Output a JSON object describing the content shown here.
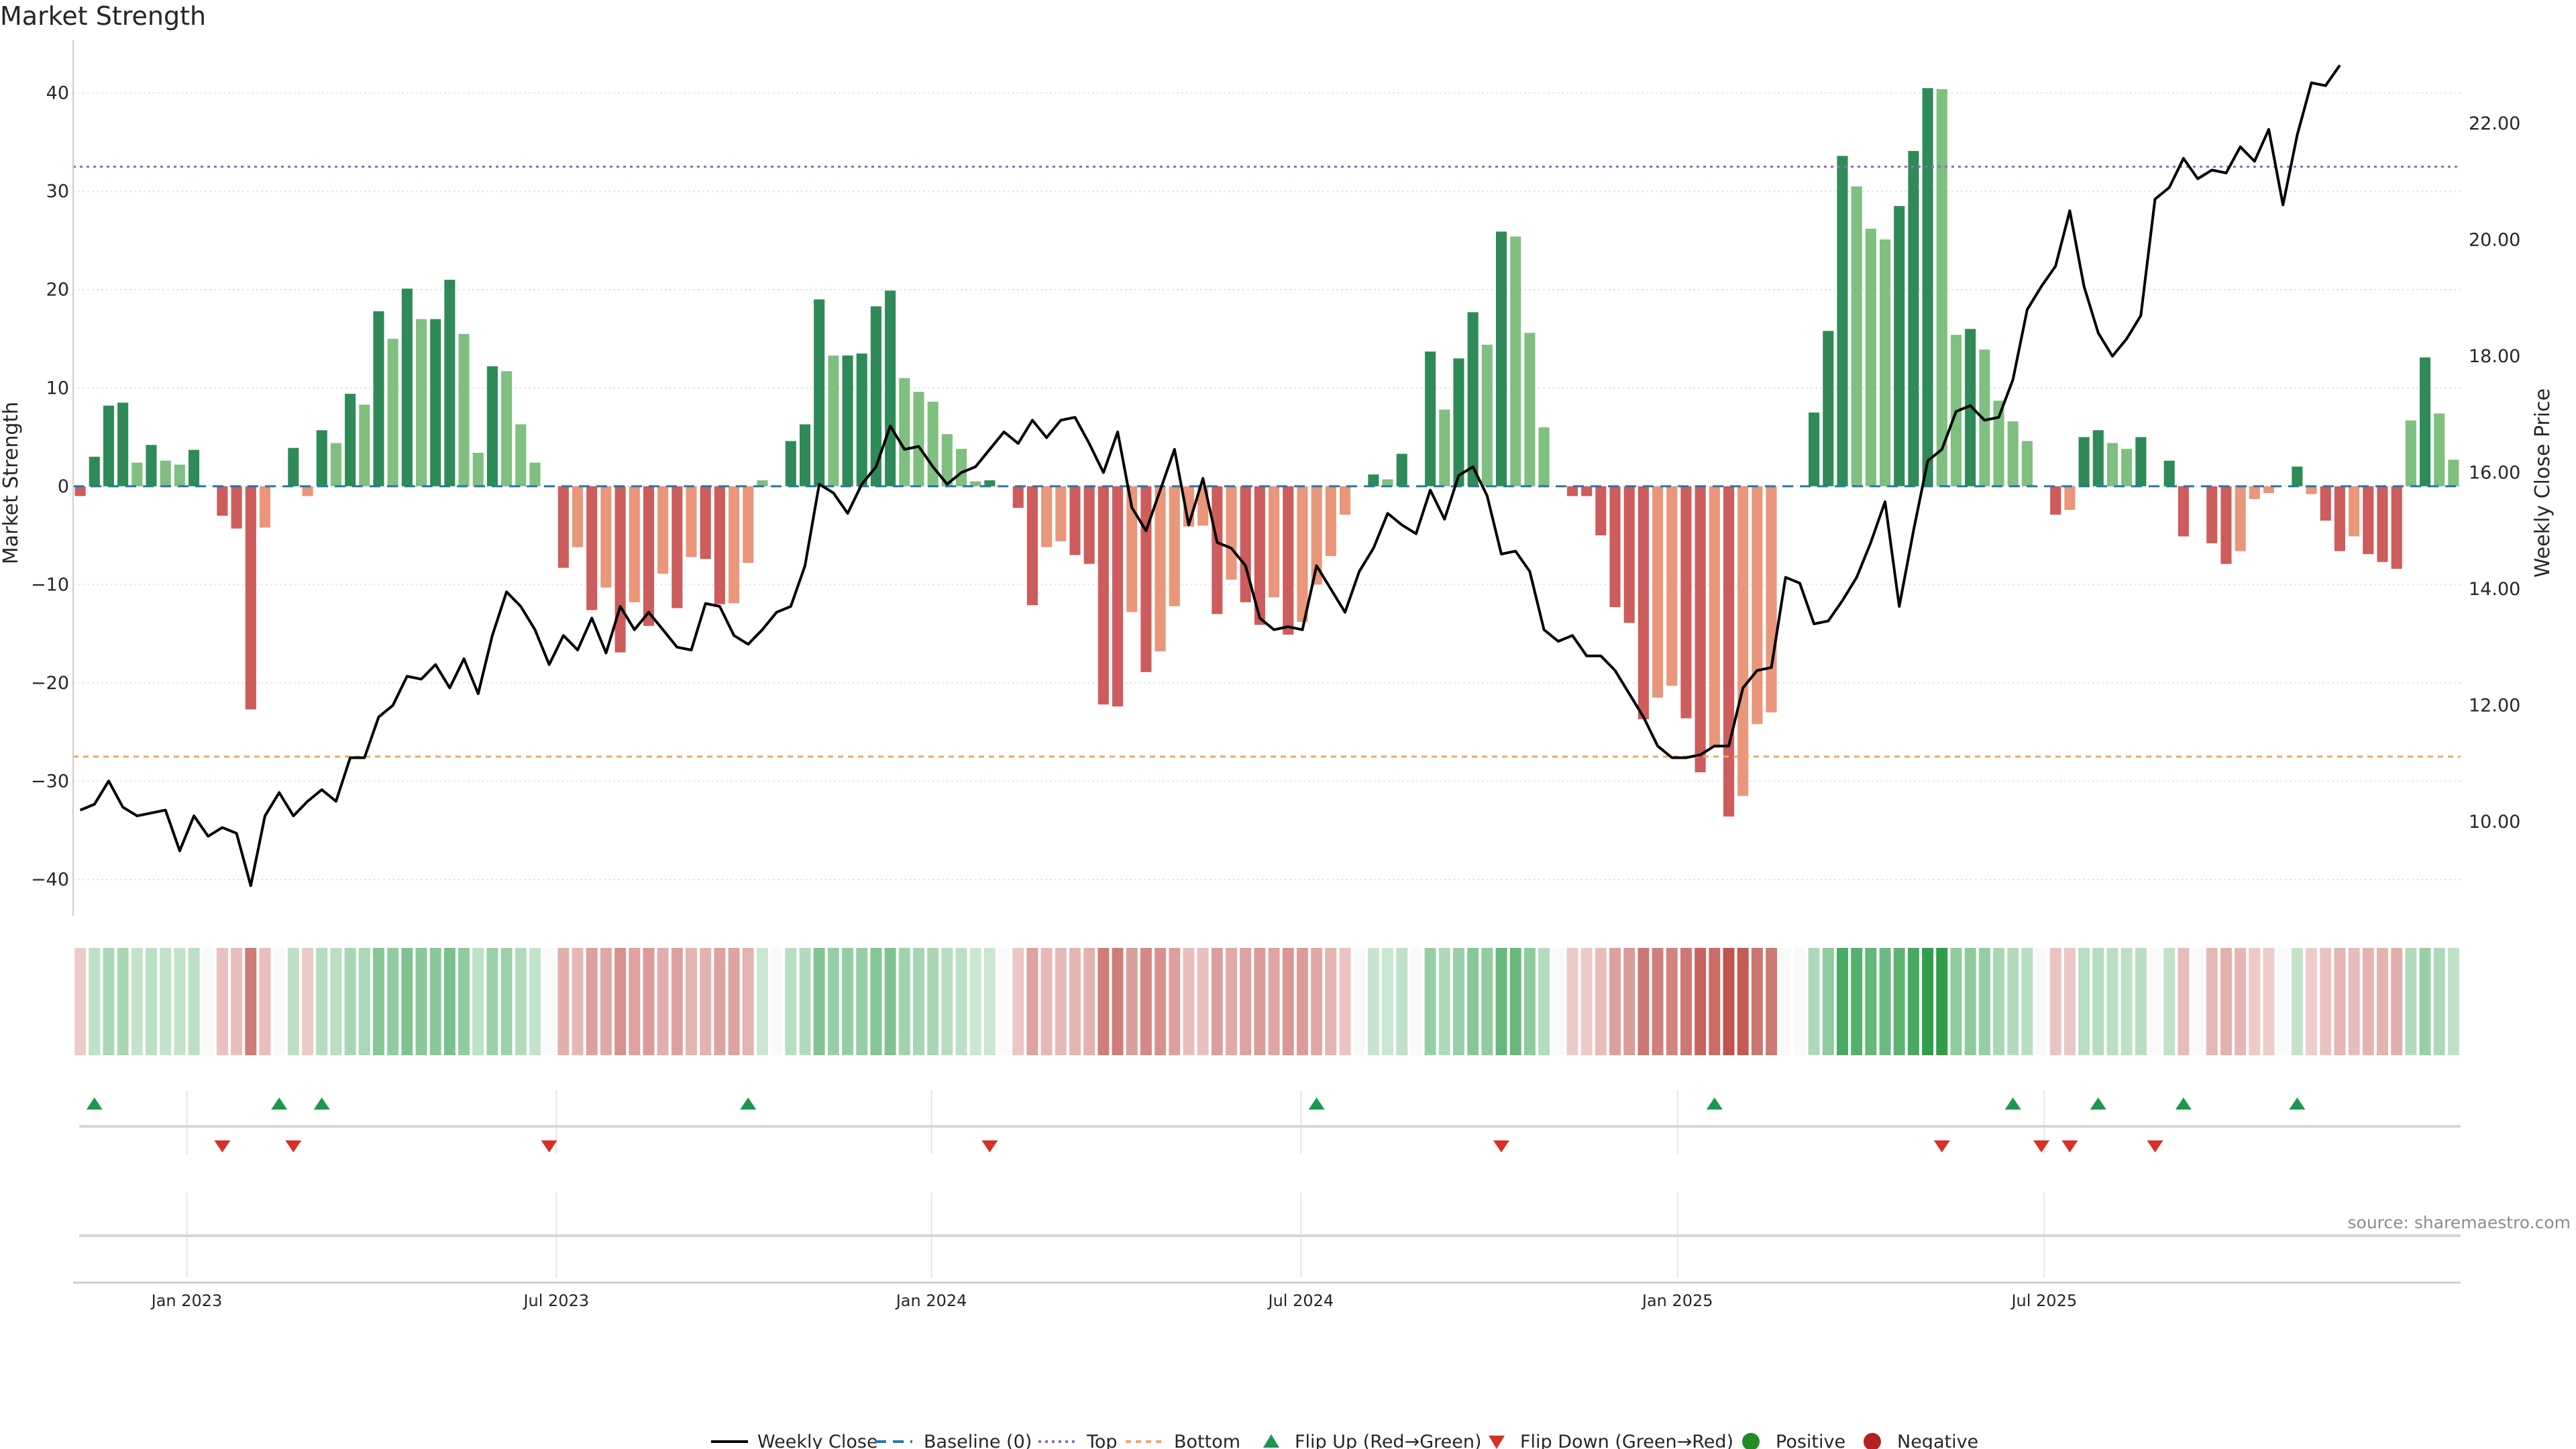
{
  "chart_data": {
    "type": "bar+line",
    "title": "Market Strength",
    "source": "source: sharemaestro.com",
    "y_left_label": "Market Strength",
    "y_right_label": "Weekly Close Price",
    "y_left_range": [
      -43,
      44
    ],
    "y_right_range": [
      8.5,
      23.2
    ],
    "y_left_ticks": [
      "40",
      "30",
      "20",
      "10",
      "0",
      "−10",
      "−20",
      "−30",
      "−40"
    ],
    "y_left_tick_values": [
      40,
      30,
      20,
      10,
      0,
      -10,
      -20,
      -30,
      -40
    ],
    "y_right_ticks": [
      "22.00",
      "20.00",
      "18.00",
      "16.00",
      "14.00",
      "12.00",
      "10.00"
    ],
    "y_right_tick_values": [
      22,
      20,
      18,
      16,
      14,
      12,
      10
    ],
    "top_threshold": 32.5,
    "bottom_threshold": -27.5,
    "baseline": 0,
    "x_ticks": [
      "Jan 2023",
      "Jul 2023",
      "Jan 2024",
      "Jul 2024",
      "Jan 2025",
      "Jul 2025"
    ],
    "x_tick_weeks": [
      7.5,
      33.5,
      59.9,
      85.9,
      112.4,
      138.2
    ],
    "strength": [
      -1,
      3,
      8.2,
      8.5,
      2.4,
      4.2,
      2.6,
      2.2,
      3.7,
      0,
      -3,
      -4.3,
      -22.7,
      -4.2,
      0,
      3.9,
      -1,
      5.7,
      4.4,
      9.4,
      8.3,
      17.8,
      15,
      20.1,
      17,
      17,
      21,
      15.5,
      3.4,
      12.2,
      11.7,
      6.3,
      2.4,
      0,
      -8.3,
      -6.2,
      -12.6,
      -10.3,
      -16.9,
      -11.8,
      -14.2,
      -8.9,
      -12.4,
      -7.2,
      -7.4,
      -12,
      -11.9,
      -7.8,
      0.6,
      0,
      4.6,
      6.3,
      19,
      13.3,
      13.3,
      13.5,
      18.3,
      19.9,
      11,
      9.6,
      8.6,
      5.3,
      3.8,
      0.5,
      0.6,
      0,
      -2.2,
      -12.1,
      -6.2,
      -5.6,
      -7,
      -7.9,
      -22.2,
      -22.4,
      -12.8,
      -18.9,
      -16.8,
      -12.2,
      -4.1,
      -4,
      -13,
      -9.5,
      -11.8,
      -14.1,
      -11.3,
      -15.1,
      -13.8,
      -10,
      -7.1,
      -2.9,
      0,
      1.2,
      0.7,
      3.3,
      0,
      13.7,
      7.8,
      13,
      17.7,
      14.4,
      25.9,
      25.4,
      15.6,
      6,
      0,
      -1,
      -1,
      -5,
      -12.3,
      -13.9,
      -23.7,
      -21.5,
      -20.3,
      -23.6,
      -29.1,
      -26.6,
      -33.6,
      -31.5,
      -24.2,
      -23,
      0,
      0,
      7.5,
      15.8,
      33.6,
      30.5,
      26.2,
      25.1,
      28.5,
      34.1,
      40.5,
      40.4,
      15.4,
      16,
      13.9,
      8.7,
      6.6,
      4.6,
      0,
      -2.9,
      -2.4,
      5,
      5.7,
      4.4,
      3.8,
      5,
      0,
      2.6,
      -5.1,
      0,
      -5.8,
      -7.9,
      -6.6,
      -1.3,
      -0.7,
      0,
      2,
      -0.8,
      -3.5,
      -6.6,
      -5.1,
      -6.9,
      -7.7,
      -8.4,
      6.7,
      13.1,
      7.4,
      2.7
    ],
    "price": [
      10.2,
      10.3,
      10.7,
      10.25,
      10.1,
      10.15,
      10.2,
      9.5,
      10.1,
      9.75,
      9.9,
      9.8,
      8.9,
      10.1,
      10.5,
      10.1,
      10.35,
      10.55,
      10.35,
      11.1,
      11.1,
      11.8,
      12,
      12.5,
      12.45,
      12.7,
      12.3,
      12.8,
      12.2,
      13.2,
      13.95,
      13.7,
      13.3,
      12.7,
      13.2,
      12.95,
      13.5,
      12.9,
      13.7,
      13.3,
      13.6,
      13.3,
      13,
      12.95,
      13.75,
      13.7,
      13.2,
      13.05,
      13.3,
      13.6,
      13.7,
      14.4,
      15.8,
      15.65,
      15.3,
      15.8,
      16.1,
      16.8,
      16.4,
      16.45,
      16.1,
      15.8,
      16,
      16.1,
      16.4,
      16.7,
      16.5,
      16.9,
      16.6,
      16.9,
      16.95,
      16.5,
      16,
      16.7,
      15.4,
      15,
      15.7,
      16.4,
      15.1,
      15.9,
      14.8,
      14.7,
      14.4,
      13.5,
      13.3,
      13.35,
      13.3,
      14.4,
      14,
      13.6,
      14.3,
      14.7,
      15.3,
      15.1,
      14.95,
      15.7,
      15.2,
      15.95,
      16.1,
      15.6,
      14.6,
      14.65,
      14.3,
      13.3,
      13.1,
      13.2,
      12.85,
      12.85,
      12.6,
      12.2,
      11.8,
      11.3,
      11.1,
      11.1,
      11.15,
      11.3,
      11.3,
      12.3,
      12.6,
      12.65,
      14.2,
      14.1,
      13.4,
      13.45,
      13.8,
      14.2,
      14.8,
      15.5,
      13.7,
      15,
      16.2,
      16.4,
      17.05,
      17.15,
      16.9,
      16.95,
      17.6,
      18.8,
      19.2,
      19.55,
      20.5,
      19.2,
      18.4,
      18,
      18.3,
      18.7,
      20.7,
      20.9,
      21.4,
      21.05,
      21.2,
      21.15,
      21.6,
      21.35,
      21.9,
      20.6,
      21.8,
      22.7,
      22.65,
      23
    ],
    "heat_strip": "one colored cell per week, intensity proportional to strength (green positive, red negative)",
    "flip_up_weeks": [
      1,
      14,
      17,
      47,
      87,
      115,
      136,
      142,
      148,
      156
    ],
    "flip_down_weeks": [
      10,
      15,
      33,
      64,
      100,
      131,
      138,
      140,
      146
    ],
    "positive_weeks": [],
    "negative_weeks": [],
    "colors": {
      "pos_strong": "#2e8b57",
      "pos_light": "#7fbf7f",
      "neg_strong": "#cd5c5c",
      "neg_light": "#e9967a",
      "price_line": "#000000",
      "baseline": "#1f77b4",
      "top": "#9467bd",
      "bottom": "#f4a460",
      "flip_up": "#1a9850",
      "flip_down": "#d73027",
      "positive_dot": "#228b22",
      "negative_dot": "#b22222",
      "grid": "#e6e6e6"
    },
    "legend": [
      "Weekly Close",
      "Baseline (0)",
      "Top",
      "Bottom",
      "Flip Up (Red→Green)",
      "Flip Down (Green→Red)",
      "Positive",
      "Negative"
    ],
    "legend_position": "bottom-center"
  }
}
